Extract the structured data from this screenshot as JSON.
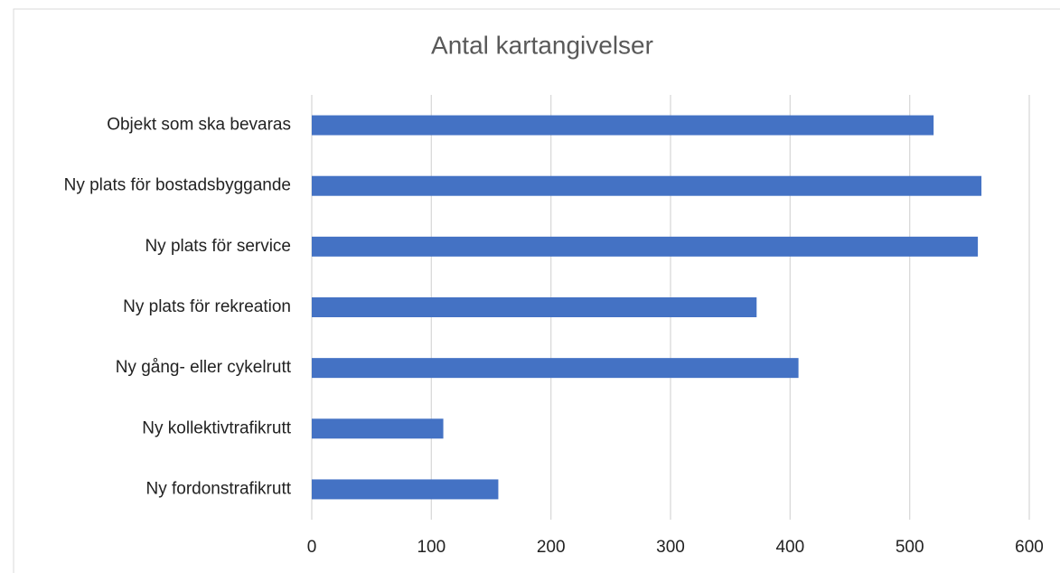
{
  "chart_data": {
    "type": "bar",
    "orientation": "horizontal",
    "title": "Antal kartangivelser",
    "categories": [
      "Objekt som ska bevaras",
      "Ny plats för bostadsbyggande",
      "Ny plats för service",
      "Ny plats för rekreation",
      "Ny gång- eller cykelrutt",
      "Ny kollektivtrafikrutt",
      "Ny fordonstrafikrutt"
    ],
    "values": [
      520,
      560,
      557,
      372,
      407,
      110,
      156
    ],
    "color": "#4472c4",
    "xlim": [
      0,
      600
    ],
    "xticks": [
      0,
      100,
      200,
      300,
      400,
      500,
      600
    ],
    "grid": true
  }
}
